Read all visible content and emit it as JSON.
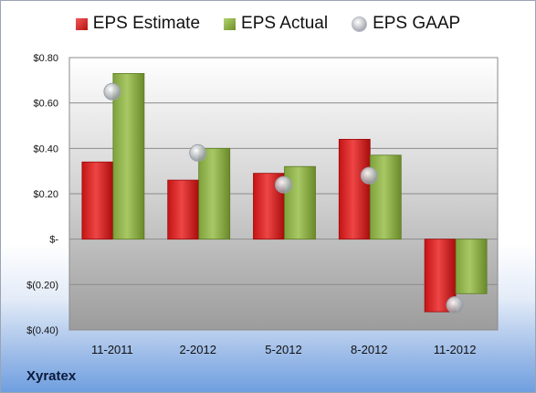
{
  "legend": {
    "estimate": "EPS Estimate",
    "actual": "EPS Actual",
    "gaap": "EPS GAAP"
  },
  "brand": "Xyratex",
  "colors": {
    "estimate": "#d42020",
    "actual": "#8cb04a",
    "gaap": "#a8acb4"
  },
  "chart_data": {
    "type": "bar",
    "categories": [
      "11-2011",
      "2-2012",
      "5-2012",
      "8-2012",
      "11-2012"
    ],
    "series": [
      {
        "name": "EPS Estimate",
        "values": [
          0.34,
          0.26,
          0.29,
          0.44,
          -0.32
        ]
      },
      {
        "name": "EPS Actual",
        "values": [
          0.73,
          0.4,
          0.32,
          0.37,
          -0.24
        ]
      },
      {
        "name": "EPS GAAP",
        "type": "scatter",
        "values": [
          0.65,
          0.38,
          0.24,
          0.28,
          -0.29
        ]
      }
    ],
    "yticks": [
      0.8,
      0.6,
      0.4,
      0.2,
      0,
      -0.2,
      -0.4
    ],
    "ytick_labels": [
      "$0.80",
      "$0.60",
      "$0.40",
      "$0.20",
      "$-",
      "$(0.20)",
      "$(0.40)"
    ],
    "ylim": [
      -0.4,
      0.8
    ],
    "grid": true,
    "legend_position": "top"
  }
}
